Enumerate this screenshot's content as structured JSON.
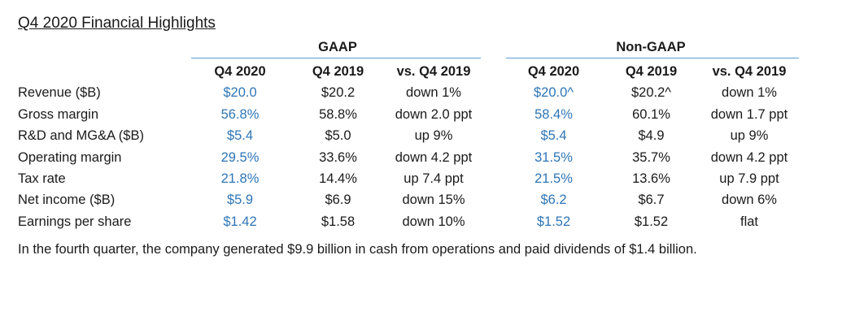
{
  "title": "Q4 2020 Financial Highlights",
  "groups": {
    "gaap": "GAAP",
    "non_gaap": "Non-GAAP"
  },
  "columns": [
    "Q4 2020",
    "Q4 2019",
    "vs. Q4 2019",
    "Q4 2020",
    "Q4 2019",
    "vs. Q4 2019"
  ],
  "colors": {
    "current_quarter_values": "#2e75b6",
    "header_rule": "#5b9bd5",
    "text": "#1a1a1a"
  },
  "rows": [
    {
      "label": "Revenue ($B)",
      "gaap": [
        "$20.0",
        "$20.2",
        "down 1%"
      ],
      "non_gaap": [
        "$20.0^",
        "$20.2^",
        "down 1%"
      ]
    },
    {
      "label": "Gross margin",
      "gaap": [
        "56.8%",
        "58.8%",
        "down 2.0 ppt"
      ],
      "non_gaap": [
        "58.4%",
        "60.1%",
        "down 1.7 ppt"
      ]
    },
    {
      "label": "R&D and MG&A ($B)",
      "gaap": [
        "$5.4",
        "$5.0",
        "up 9%"
      ],
      "non_gaap": [
        "$5.4",
        "$4.9",
        "up 9%"
      ]
    },
    {
      "label": "Operating margin",
      "gaap": [
        "29.5%",
        "33.6%",
        "down 4.2 ppt"
      ],
      "non_gaap": [
        "31.5%",
        "35.7%",
        "down 4.2 ppt"
      ]
    },
    {
      "label": "Tax rate",
      "gaap": [
        "21.8%",
        "14.4%",
        "up 7.4 ppt"
      ],
      "non_gaap": [
        "21.5%",
        "13.6%",
        "up 7.9 ppt"
      ]
    },
    {
      "label": "Net income ($B)",
      "gaap": [
        "$5.9",
        "$6.9",
        "down 15%"
      ],
      "non_gaap": [
        "$6.2",
        "$6.7",
        "down 6%"
      ]
    },
    {
      "label": "Earnings per share",
      "gaap": [
        "$1.42",
        "$1.58",
        "down 10%"
      ],
      "non_gaap": [
        "$1.52",
        "$1.52",
        "flat"
      ]
    }
  ],
  "footnote": "In the fourth quarter, the company generated $9.9 billion in cash from operations and paid dividends of $1.4 billion."
}
